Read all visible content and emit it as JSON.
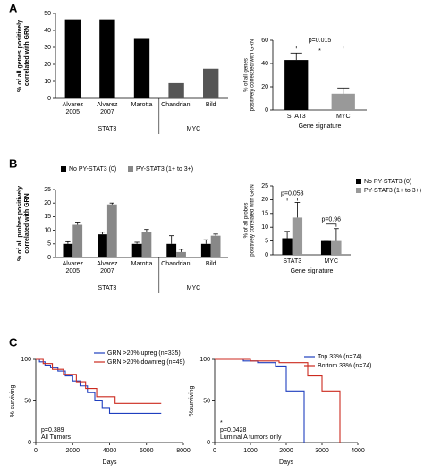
{
  "chart_data": [
    {
      "type": "bar",
      "panel_label": "A",
      "y_label": "% of all genes positively\ncorrelated with GRN",
      "categories": [
        "Alvarez\n2005",
        "Alvarez\n2007",
        "Marotta",
        "Chandriani",
        "Bild"
      ],
      "values": [
        46.5,
        46.5,
        35,
        9,
        17.5
      ],
      "colors": [
        "#000000",
        "#000000",
        "#000000",
        "#555555",
        "#555555"
      ],
      "groups": [
        {
          "label": "STAT3",
          "count": 3
        },
        {
          "label": "MYC",
          "count": 2
        }
      ],
      "ylim": [
        0,
        50
      ],
      "yticks": [
        0,
        10,
        20,
        30,
        40,
        50
      ]
    },
    {
      "type": "bar",
      "y_label": "% of all genes\npositively correlated with GRN",
      "x_label": "Gene signature",
      "categories": [
        "STAT3",
        "MYC"
      ],
      "values": [
        43,
        14
      ],
      "errors": [
        6,
        5
      ],
      "colors": [
        "#000000",
        "#999999"
      ],
      "annotations": [
        "p=0.015",
        "*"
      ],
      "ylim": [
        0,
        60
      ],
      "yticks": [
        0,
        20,
        40,
        60
      ]
    },
    {
      "type": "grouped_bar",
      "panel_label": "B",
      "y_label": "% of all probes positively\ncorrelated with GRN",
      "categories": [
        "Alvarez\n2005",
        "Alvarez\n2007",
        "Marotta",
        "Chandriani",
        "Bild"
      ],
      "groups": [
        {
          "label": "STAT3",
          "count": 3
        },
        {
          "label": "MYC",
          "count": 2
        }
      ],
      "series": [
        {
          "name": "No PY-STAT3 (0)",
          "color": "#000000",
          "values": [
            5,
            8.5,
            5,
            5,
            5
          ],
          "errors": [
            0.8,
            0.8,
            0.6,
            3,
            1.5
          ]
        },
        {
          "name": "PY-STAT3 (1+ to 3+)",
          "color": "#888888",
          "values": [
            12,
            19.5,
            9.5,
            2,
            8
          ],
          "errors": [
            1,
            0.5,
            0.8,
            1,
            0.6
          ]
        }
      ],
      "legend": "top",
      "ylim": [
        0,
        25
      ],
      "yticks": [
        0,
        5,
        10,
        15,
        20,
        25
      ]
    },
    {
      "type": "grouped_bar",
      "y_label": "% of all probes\npositively correlated with GRN",
      "x_label": "Gene signature",
      "categories": [
        "STAT3",
        "MYC"
      ],
      "series": [
        {
          "name": "No PY-STAT3 (0)",
          "color": "#000000",
          "values": [
            6,
            5
          ],
          "errors": [
            2.5,
            0.3
          ]
        },
        {
          "name": "PY-STAT3 (1+ to 3+)",
          "color": "#999999",
          "values": [
            13.5,
            5
          ],
          "errors": [
            5.5,
            4.5
          ]
        }
      ],
      "annotations": [
        "p=0.053",
        "p=0.96"
      ],
      "legend": "right",
      "ylim": [
        0,
        25
      ],
      "yticks": [
        0,
        5,
        10,
        15,
        20,
        25
      ]
    },
    {
      "type": "line",
      "step": true,
      "panel_label": "C",
      "x_label": "Days",
      "y_label": "% surviving",
      "series": [
        {
          "name": "GRN >20% upreg (n=335)",
          "color": "#1f3fbf",
          "x": [
            0,
            200,
            500,
            800,
            1200,
            1600,
            2000,
            2400,
            2800,
            3200,
            3600,
            4000,
            6800
          ],
          "values": [
            100,
            97,
            93,
            90,
            86,
            80,
            74,
            68,
            60,
            50,
            42,
            35,
            35
          ]
        },
        {
          "name": "GRN >20% downreg (n=49)",
          "color": "#cc2a1f",
          "x": [
            0,
            400,
            900,
            1500,
            2200,
            2700,
            3300,
            4300,
            6800
          ],
          "values": [
            100,
            95,
            88,
            82,
            73,
            65,
            55,
            47,
            47
          ]
        }
      ],
      "annotations": [
        "p=0.389",
        "All Tumors"
      ],
      "xlim": [
        0,
        8000
      ],
      "xticks": [
        0,
        2000,
        4000,
        6000,
        8000
      ],
      "ylim": [
        0,
        100
      ],
      "yticks": [
        0,
        50,
        100
      ]
    },
    {
      "type": "line",
      "step": true,
      "x_label": "Days",
      "y_label": "%surviving",
      "series": [
        {
          "name": "Top 33% (n=74)",
          "color": "#1f3fbf",
          "x": [
            0,
            800,
            1200,
            1700,
            2000,
            2500
          ],
          "values": [
            100,
            98,
            96,
            92,
            62,
            0
          ]
        },
        {
          "name": "Bottom 33% (n=74)",
          "color": "#cc2a1f",
          "x": [
            0,
            1000,
            1800,
            2600,
            3000,
            3500
          ],
          "values": [
            100,
            98,
            96,
            80,
            62,
            0
          ]
        }
      ],
      "annotations": [
        "*",
        "p=0.0428",
        "Luminal A tumors only"
      ],
      "xlim": [
        0,
        4000
      ],
      "xticks": [
        0,
        1000,
        2000,
        3000,
        4000
      ],
      "ylim": [
        0,
        100
      ],
      "yticks": [
        0,
        50,
        100
      ]
    }
  ]
}
